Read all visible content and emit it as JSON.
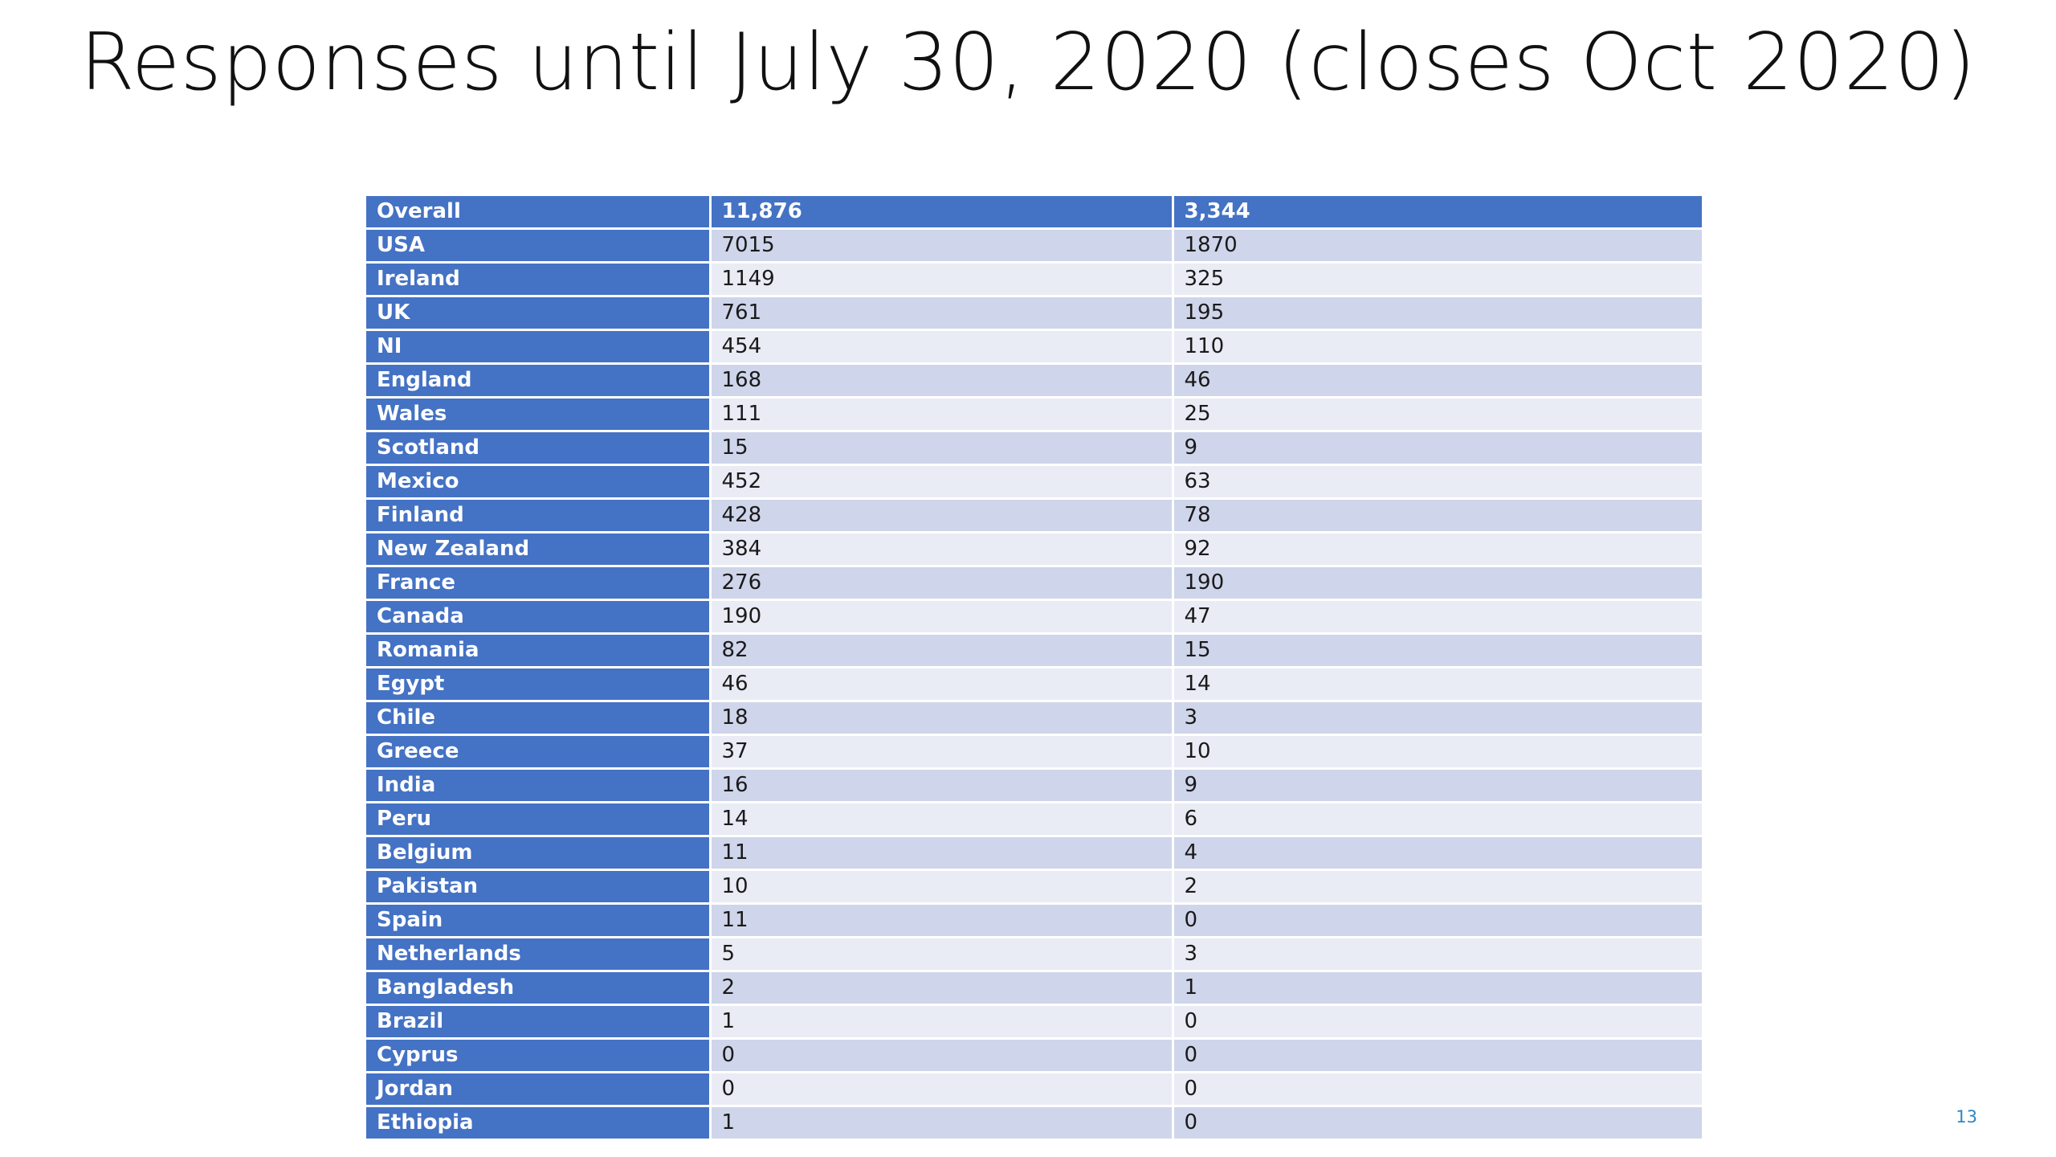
{
  "slide": {
    "title": "Responses until July 30, 2020 (closes Oct 2020)",
    "page_number": "13"
  },
  "table": {
    "header": {
      "label": "Overall",
      "col1": "11,876",
      "col2": "3,344"
    },
    "rows": [
      {
        "label": "USA",
        "col1": "7015",
        "col2": "1870"
      },
      {
        "label": "Ireland",
        "col1": "1149",
        "col2": "325"
      },
      {
        "label": "UK",
        "col1": "761",
        "col2": "195"
      },
      {
        "label": "NI",
        "col1": "454",
        "col2": "110"
      },
      {
        "label": "England",
        "col1": "168",
        "col2": "46"
      },
      {
        "label": "Wales",
        "col1": "111",
        "col2": "25"
      },
      {
        "label": "Scotland",
        "col1": "15",
        "col2": "9"
      },
      {
        "label": "Mexico",
        "col1": "452",
        "col2": "63"
      },
      {
        "label": "Finland",
        "col1": "428",
        "col2": "78"
      },
      {
        "label": "New Zealand",
        "col1": "384",
        "col2": "92"
      },
      {
        "label": "France",
        "col1": "276",
        "col2": "190"
      },
      {
        "label": "Canada",
        "col1": "190",
        "col2": "47"
      },
      {
        "label": "Romania",
        "col1": "82",
        "col2": "15"
      },
      {
        "label": "Egypt",
        "col1": "46",
        "col2": "14"
      },
      {
        "label": "Chile",
        "col1": "18",
        "col2": "3"
      },
      {
        "label": "Greece",
        "col1": "37",
        "col2": "10"
      },
      {
        "label": "India",
        "col1": "16",
        "col2": "9"
      },
      {
        "label": "Peru",
        "col1": "14",
        "col2": "6"
      },
      {
        "label": "Belgium",
        "col1": "11",
        "col2": "4"
      },
      {
        "label": "Pakistan",
        "col1": "10",
        "col2": "2"
      },
      {
        "label": "Spain",
        "col1": "11",
        "col2": "0"
      },
      {
        "label": "Netherlands",
        "col1": "5",
        "col2": "3"
      },
      {
        "label": "Bangladesh",
        "col1": "2",
        "col2": "1"
      },
      {
        "label": "Brazil",
        "col1": "1",
        "col2": "0"
      },
      {
        "label": "Cyprus",
        "col1": "0",
        "col2": "0"
      },
      {
        "label": "Jordan",
        "col1": "0",
        "col2": "0"
      },
      {
        "label": "Ethiopia",
        "col1": "1",
        "col2": "0"
      }
    ]
  },
  "colors": {
    "header_blue": "#4472c4",
    "row_band_dark": "#cfd5ea",
    "row_band_light": "#e9ebf5",
    "page_number": "#2e86c1"
  }
}
